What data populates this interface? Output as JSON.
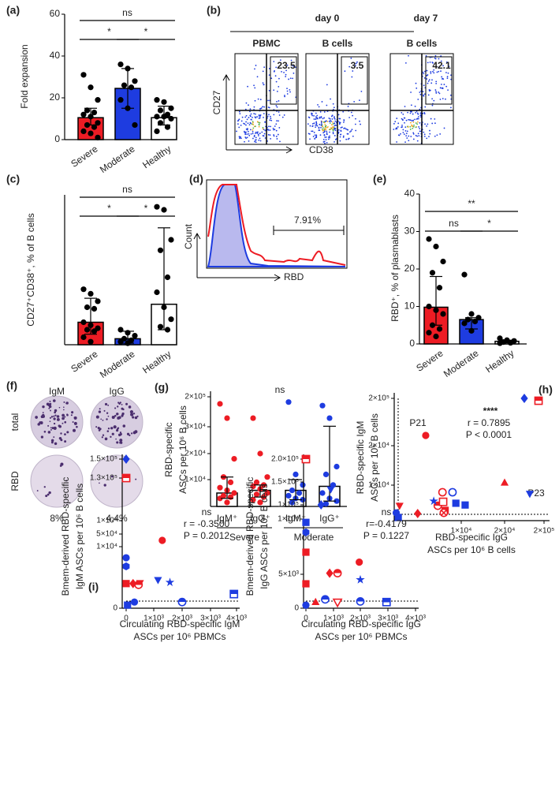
{
  "panel_labels": [
    "(a)",
    "(b)",
    "(c)",
    "(d)",
    "(e)",
    "(f)",
    "(g)",
    "(h)",
    "(i)"
  ],
  "flow": {
    "timepoints": [
      "day 0",
      "day 7"
    ],
    "populations": [
      "PBMC",
      "B cells",
      "B cells"
    ],
    "y_axis": "CD27",
    "x_axis": "CD38",
    "gate_values": [
      23.5,
      3.5,
      42.1
    ]
  },
  "histogram": {
    "y_axis": "Count",
    "x_axis": "RBD",
    "gate": "7.91%"
  },
  "elispot": {
    "columns": [
      "IgM",
      "IgG"
    ],
    "rows": [
      "total",
      "RBD"
    ],
    "percentages": [
      "8%",
      "4.4%"
    ]
  },
  "chart_data": [
    {
      "type": "bar",
      "ylabel": [
        "Fold expansion"
      ],
      "categories": [
        "Severe",
        "Moderate",
        "Healthy"
      ],
      "values": [
        10.5,
        24.5,
        10.5
      ],
      "error_low": [
        7,
        15,
        7
      ],
      "error_high": [
        15,
        34,
        16
      ],
      "colors": [
        "#ed1c24",
        "#1e3ce0",
        "#ffffff"
      ],
      "point_colors": [
        "#000000",
        "#000000",
        "#000000"
      ],
      "points": [
        [
          31,
          25,
          19,
          14,
          13,
          12,
          11,
          8,
          7,
          6,
          4,
          3,
          1
        ],
        [
          36,
          34,
          28,
          26,
          25,
          19,
          15,
          7
        ],
        [
          19,
          18,
          15,
          14,
          12,
          11,
          11,
          10,
          8,
          6,
          4
        ]
      ],
      "ylim": [
        0,
        60
      ],
      "yticks": [
        0,
        20,
        40,
        60
      ],
      "annotations": [
        "ns",
        "*",
        "*"
      ]
    },
    {
      "type": "bar",
      "ylabel": [
        "CD27⁺CD38⁺, % of B cells"
      ],
      "categories": [
        "Severe",
        "Moderate",
        "Healthy"
      ],
      "values": [
        15,
        4,
        27
      ],
      "error_low": [
        7,
        1,
        10
      ],
      "error_high": [
        31,
        9,
        78
      ],
      "colors": [
        "#ed1c24",
        "#1e3ce0",
        "#ffffff"
      ],
      "point_colors": [
        "#000000",
        "#000000",
        "#000000"
      ],
      "points": [
        [
          37,
          34,
          29,
          25,
          24,
          15,
          13,
          11,
          10,
          9,
          5,
          2
        ],
        [
          10,
          8,
          6,
          4,
          3,
          2,
          1
        ],
        [
          92,
          90,
          70,
          63,
          45,
          35,
          25,
          17,
          12,
          10
        ]
      ],
      "ylim": [
        0,
        100
      ],
      "annotations": [
        "ns",
        "*",
        "*"
      ]
    },
    {
      "type": "bar",
      "ylabel": [
        "RBD⁺, % of plasmablasts"
      ],
      "categories": [
        "Severe",
        "Moderate",
        "Healthy"
      ],
      "values": [
        9.8,
        6.5,
        0.7
      ],
      "error_low": [
        5,
        4,
        0.3
      ],
      "error_high": [
        18,
        7,
        1
      ],
      "colors": [
        "#ed1c24",
        "#1e3ce0",
        "#ffffff"
      ],
      "point_colors": [
        "#000000",
        "#000000",
        "#000000"
      ],
      "points": [
        [
          28,
          26,
          22,
          19,
          15,
          10,
          9,
          8,
          5,
          4,
          3,
          2
        ],
        [
          18.5,
          8,
          7,
          6.5,
          6,
          5.5,
          3.5
        ],
        [
          1.5,
          1,
          0.8,
          0.5,
          0.3,
          0.2
        ]
      ],
      "ylim": [
        0,
        40
      ],
      "yticks": [
        0,
        10,
        20,
        30,
        40
      ],
      "annotations": [
        "**",
        "ns",
        "*"
      ]
    },
    {
      "type": "bar",
      "ylabel": [
        "RBD-specific",
        "ASCs per 10⁶ B cells"
      ],
      "categories": [
        "IgM⁺",
        "IgG⁺",
        "IgM⁺",
        "IgG⁺"
      ],
      "groups": [
        "Severe",
        "Moderate"
      ],
      "values": [
        5000,
        6000,
        6000,
        7500
      ],
      "error_low": [
        3000,
        3500,
        2500,
        2000
      ],
      "error_high": [
        11000,
        8000,
        10000,
        33000
      ],
      "colors": [
        "#ffffff",
        "#ffffff",
        "#ffffff",
        "#ffffff"
      ],
      "point_colors": [
        "#ed1c24",
        "#ed1c24",
        "#1e3ce0",
        "#1e3ce0"
      ],
      "points": [
        [
          160000,
          79000,
          18000,
          11000,
          9000,
          7000,
          6000,
          5000,
          4000,
          3500,
          3000,
          1500
        ],
        [
          79000,
          20000,
          11000,
          9000,
          8000,
          7500,
          6500,
          5000,
          4500,
          3500,
          2500,
          1500
        ],
        [
          170000,
          12000,
          8000,
          6000,
          5000,
          4000,
          3000,
          2500,
          1500
        ],
        [
          150000,
          79000,
          15000,
          12000,
          8000,
          5000,
          3000,
          2000,
          1000
        ]
      ],
      "ylim": [
        0,
        250000
      ],
      "yticks": [
        {
          "value": 10000,
          "label": "1×10⁴"
        },
        {
          "value": 20000,
          "label": "2×10⁴"
        },
        {
          "value": 30000,
          "label": "3×10⁴"
        },
        {
          "value": 200000,
          "label": "2×10⁵"
        }
      ],
      "annotations": [
        "ns"
      ]
    },
    {
      "type": "scatter",
      "ylabel": [
        "RBD-specific IgM",
        "ASCs per 10⁶ B cells"
      ],
      "xlabel": [
        "RBD-specific IgG",
        "ASCs per 10⁶ B cells"
      ],
      "annotations": [
        "****",
        "r = 0.7895",
        "P < 0.0001",
        "P21",
        "P23"
      ],
      "x": [
        4700,
        110000,
        175000,
        20000,
        135000,
        7200,
        8700,
        10900,
        9200,
        7600,
        6500,
        800,
        3500,
        7400,
        5900,
        300,
        600,
        7300
      ],
      "y": [
        59000,
        200000,
        191000,
        10600,
        7600,
        8000,
        8000,
        4400,
        4900,
        2900,
        4200,
        4200,
        2000,
        2200,
        5500,
        2200,
        900,
        5300
      ],
      "colors": [
        "#ed1c24",
        "#1e3ce0",
        "#ed1c24",
        "#ed1c24",
        "#1e3ce0",
        "#ed1c24",
        "#1e3ce0",
        "#1e3ce0",
        "#1e3ce0",
        "#ed1c24",
        "#ed1c24",
        "#ed1c24",
        "#ed1c24",
        "#ed1c24",
        "#1e3ce0",
        "#1e3ce0",
        "#1e3ce0",
        "#ed1c24"
      ],
      "markers": [
        "circle",
        "diamond",
        "square-half",
        "triangle",
        "tridown",
        "circle-open",
        "circle-open",
        "square",
        "square",
        "square",
        "circle-half",
        "tridown",
        "diamond",
        "circle-cross",
        "star",
        "circle",
        "square",
        "square-open"
      ],
      "xlim": [
        0,
        220000
      ],
      "ylim": [
        0,
        220000
      ],
      "xticks": [
        {
          "value": 10000,
          "label": "1×10⁴"
        },
        {
          "value": 20000,
          "label": "2×10⁴"
        },
        {
          "value": 200000,
          "label": "2×10⁵"
        }
      ],
      "yticks": [
        {
          "value": 10000,
          "label": "1×10⁴"
        },
        {
          "value": 20000,
          "label": "2×10⁴"
        },
        {
          "value": 200000,
          "label": "2×10⁵"
        }
      ]
    },
    {
      "type": "scatter",
      "ylabel": [
        "Bmem-derived RBD-specific",
        "IgM ASCs per 10⁶ B cells"
      ],
      "xlabel": [
        "Circulating RBD-specific IgM",
        "ASCs per 10⁶ PBMCs"
      ],
      "annotations": [
        "ns",
        "r = -0.3500",
        "P = 0.2012"
      ],
      "x": [
        0,
        0,
        1300,
        0,
        0,
        1570,
        1150,
        0,
        500,
        450,
        250,
        3900,
        2000,
        300,
        50
      ],
      "y": [
        150000,
        130000,
        30000,
        8200,
        6800,
        4200,
        4600,
        4000,
        4100,
        3800,
        4000,
        2300,
        1000,
        1000,
        500
      ],
      "colors": [
        "#1e3ce0",
        "#ed1c24",
        "#ed1c24",
        "#1e3ce0",
        "#1e3ce0",
        "#1e3ce0",
        "#1e3ce0",
        "#ed1c24",
        "#ed1c24",
        "#ed1c24",
        "#ed1c24",
        "#1e3ce0",
        "#1e3ce0",
        "#1e3ce0",
        "#1e3ce0"
      ],
      "markers": [
        "diamond",
        "square-half",
        "circle",
        "circle",
        "hexagon",
        "star",
        "tridown",
        "square",
        "tridown",
        "circle-half",
        "diamond",
        "square-half",
        "circle-half",
        "circle",
        "square"
      ],
      "xlim": [
        -200,
        4100
      ],
      "ylim": [
        -2000,
        155000
      ],
      "xticks": [
        0,
        {
          "value": 1000,
          "label": "1×10³"
        },
        {
          "value": 2000,
          "label": "2×10³"
        },
        {
          "value": 3000,
          "label": "3×10³"
        },
        {
          "value": 4000,
          "label": "4×10³"
        }
      ],
      "yticks": [
        0,
        {
          "value": 10000,
          "label": "1×10⁴"
        },
        {
          "value": 50000,
          "label": "5×10⁴"
        },
        {
          "value": 100000,
          "label": "1×10⁵"
        },
        {
          "value": 130000,
          "label": "1.3×10⁵"
        },
        {
          "value": 150000,
          "label": "1.5×10⁵"
        }
      ]
    },
    {
      "type": "scatter",
      "ylabel": [
        "Bmem-derived RBD-specific",
        "IgG ASCs per 10⁶ B cells"
      ],
      "xlabel": [
        "Circulating RBD-specific IgG",
        "ASCs per 10⁶ PBMCs"
      ],
      "annotations": [
        "ns",
        "r=-0.4179",
        "P = 0.1227"
      ],
      "x": [
        0,
        900,
        550,
        0,
        0,
        0,
        1960,
        1150,
        860,
        2000,
        0,
        700,
        2000,
        2950,
        350,
        1150,
        0
      ],
      "y": [
        200000,
        134000,
        100000,
        9700,
        8800,
        7000,
        6100,
        5100,
        5100,
        4200,
        3600,
        1300,
        1000,
        900,
        900,
        900,
        450
      ],
      "colors": [
        "#ed1c24",
        "#1e3ce0",
        "#1e3ce0",
        "#1e3ce0",
        "#1e3ce0",
        "#ed1c24",
        "#ed1c24",
        "#ed1c24",
        "#ed1c24",
        "#1e3ce0",
        "#ed1c24",
        "#1e3ce0",
        "#1e3ce0",
        "#1e3ce0",
        "#ed1c24",
        "#ed1c24",
        "#1e3ce0"
      ],
      "markers": [
        "square-half",
        "tridown",
        "diamond",
        "square",
        "hexagon",
        "square",
        "circle",
        "circle-half",
        "diamond",
        "star",
        "square",
        "circle-half",
        "circle-half",
        "square-half",
        "triangle",
        "tridown-open",
        "circle"
      ],
      "xlim": [
        -200,
        4100
      ],
      "ylim": [
        -2000,
        210000
      ],
      "xticks": [
        0,
        {
          "value": 1000,
          "label": "1×10³"
        },
        {
          "value": 2000,
          "label": "2×10³"
        },
        {
          "value": 3000,
          "label": "3×10³"
        },
        {
          "value": 4000,
          "label": "4×10³"
        }
      ],
      "yticks": [
        0,
        {
          "value": 5000,
          "label": "5×10³"
        },
        {
          "value": 10000,
          "label": "1×10⁴"
        },
        {
          "value": 100000,
          "label": "1×10⁵"
        },
        {
          "value": 150000,
          "label": "1.5×10⁵"
        },
        {
          "value": 200000,
          "label": "2.0×10⁵"
        }
      ]
    }
  ]
}
